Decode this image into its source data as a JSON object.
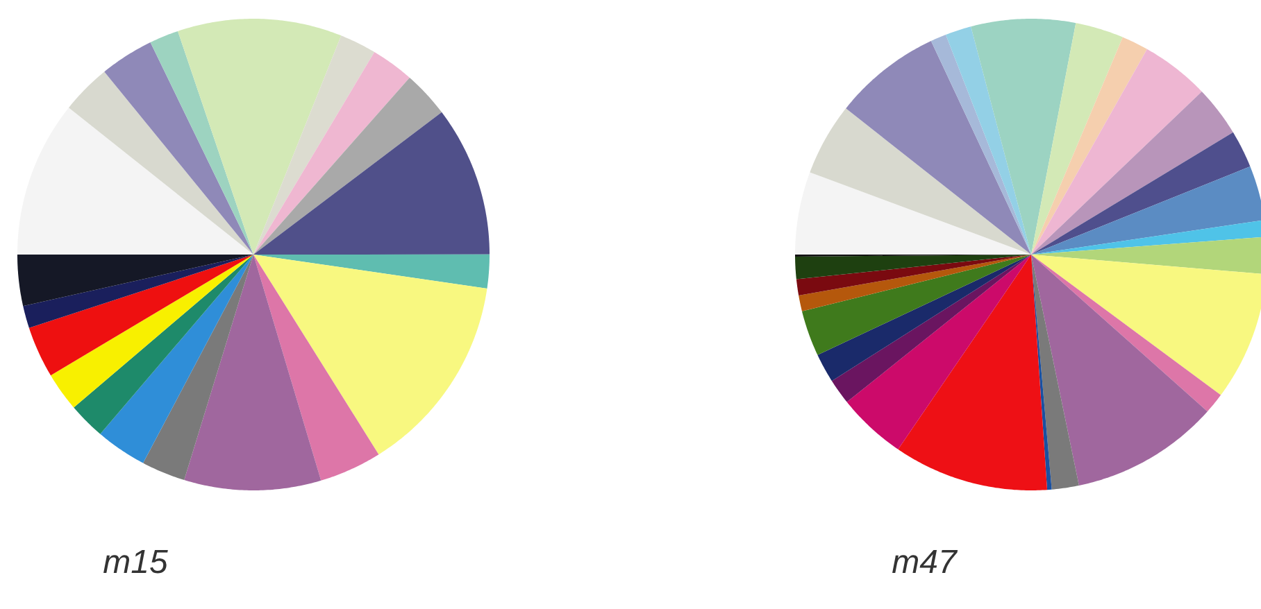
{
  "chart_data": [
    {
      "type": "pie",
      "title": "m15",
      "categories": [
        null,
        null,
        null,
        null,
        null,
        null,
        null,
        null,
        null,
        null,
        null,
        null,
        null,
        null,
        null,
        null,
        null,
        null,
        null,
        null
      ],
      "values": [
        10.7,
        3.42,
        3.69,
        2.0,
        11.25,
        2.5,
        2.94,
        3.19,
        10.3,
        2.31,
        13.8,
        4.28,
        9.36,
        3.0,
        3.5,
        2.53,
        2.67,
        3.53,
        1.53,
        3.5
      ],
      "colors": [
        "#f4f4f4",
        "#d8d9cf",
        "#8f89b8",
        "#9dd3c0",
        "#d3e9b6",
        "#dcdcd0",
        "#efb7d1",
        "#a9a9a9",
        "#50508a",
        "#5fbdb0",
        "#f8f880",
        "#dd76a8",
        "#a0679e",
        "#7a7a7a",
        "#2f8ed8",
        "#1e8a6a",
        "#f8f000",
        "#ee1010",
        "#1a1f5c",
        "#151826"
      ]
    },
    {
      "type": "pie",
      "title": "m47",
      "categories": [
        null,
        null,
        null,
        null,
        null,
        null,
        null,
        null,
        null,
        null,
        null,
        null,
        null,
        null,
        null,
        null,
        null,
        null,
        null,
        null,
        null,
        null,
        null,
        null,
        null,
        null,
        null,
        null
      ],
      "values": [
        5.67,
        4.97,
        7.39,
        1.08,
        1.78,
        7.14,
        3.31,
        1.83,
        4.69,
        3.47,
        2.58,
        3.75,
        1.14,
        2.53,
        8.83,
        1.42,
        10.17,
        1.86,
        0.31,
        10.61,
        4.72,
        1.75,
        2.0,
        3.14,
        1.08,
        1.11,
        1.53,
        0.14
      ],
      "colors": [
        "#f4f4f4",
        "#d8d9cf",
        "#8f89b8",
        "#a6b9d9",
        "#93d0e6",
        "#9cd3c2",
        "#d3e9b6",
        "#f5cfae",
        "#eeb6d2",
        "#b895ba",
        "#4f4f8d",
        "#5b8cc3",
        "#4fc3e8",
        "#b2d67a",
        "#f8f880",
        "#dd76a8",
        "#a0679e",
        "#7a7a7a",
        "#1a50a0",
        "#ee1015",
        "#cc0a6a",
        "#6a1560",
        "#1a2a6a",
        "#3f7a1c",
        "#b5580c",
        "#7a0a10",
        "#1e4010",
        "#111111"
      ]
    }
  ]
}
